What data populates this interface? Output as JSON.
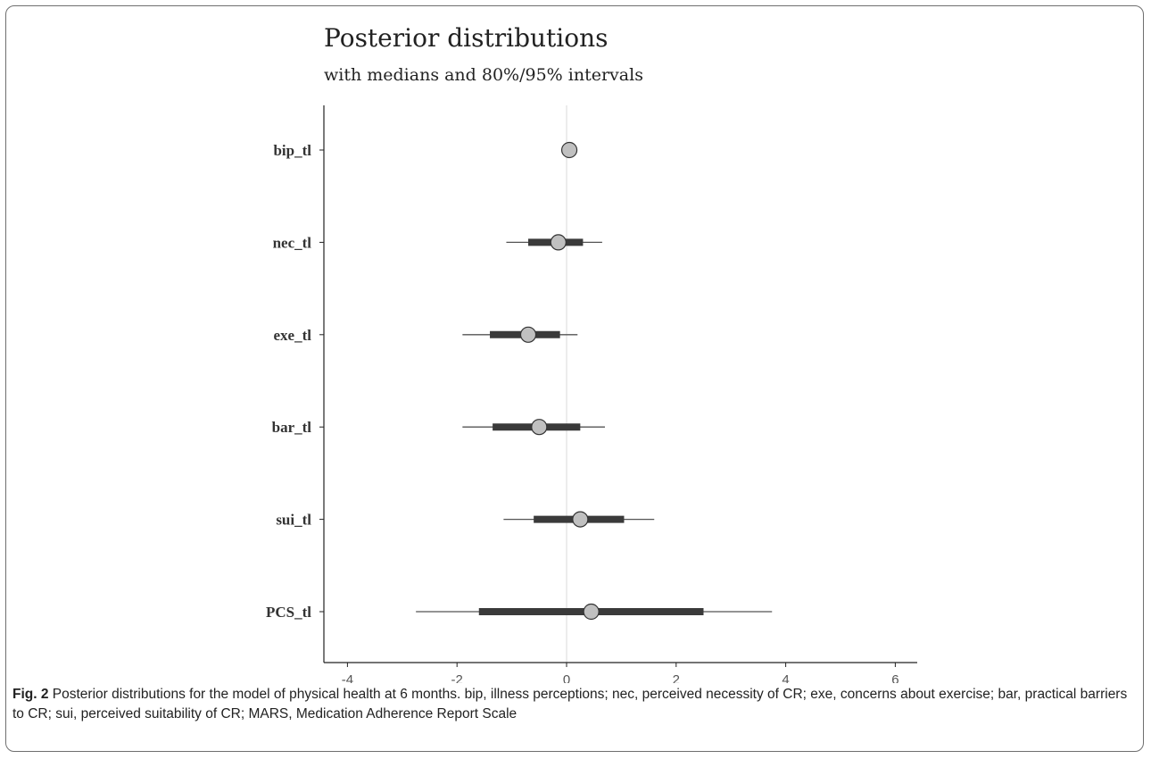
{
  "chart_data": {
    "type": "interval",
    "title": "Posterior distributions",
    "subtitle": "with medians and 80%/95% intervals",
    "xlabel": "",
    "ylabel": "",
    "xlim": [
      -4.5,
      6.5
    ],
    "xticks": [
      -4,
      -2,
      0,
      2,
      4,
      6
    ],
    "reference_line": 0,
    "point_color": "#c0c0c0",
    "interval_color": "#3a3a3a",
    "params": [
      {
        "name": "bip_tl",
        "median": 0.05,
        "inner": [
          0.0,
          0.1
        ],
        "outer": [
          0.0,
          0.1
        ]
      },
      {
        "name": "nec_tl",
        "median": -0.15,
        "inner": [
          -0.7,
          0.3
        ],
        "outer": [
          -1.1,
          0.65
        ]
      },
      {
        "name": "exe_tl",
        "median": -0.7,
        "inner": [
          -1.4,
          -0.12
        ],
        "outer": [
          -1.9,
          0.2
        ]
      },
      {
        "name": "bar_tl",
        "median": -0.5,
        "inner": [
          -1.35,
          0.25
        ],
        "outer": [
          -1.9,
          0.7
        ]
      },
      {
        "name": "sui_tl",
        "median": 0.25,
        "inner": [
          -0.6,
          1.05
        ],
        "outer": [
          -1.15,
          1.6
        ]
      },
      {
        "name": "PCS_tl",
        "median": 0.45,
        "inner": [
          -1.6,
          2.5
        ],
        "outer": [
          -2.75,
          3.75
        ]
      }
    ]
  },
  "caption": {
    "label": "Fig. 2",
    "text": " Posterior distributions for the model of physical health at 6 months. bip, illness perceptions; nec, perceived necessity of CR; exe, concerns about exercise; bar, practical barriers to CR; sui, perceived suitability of CR; MARS, Medication Adherence Report Scale"
  }
}
